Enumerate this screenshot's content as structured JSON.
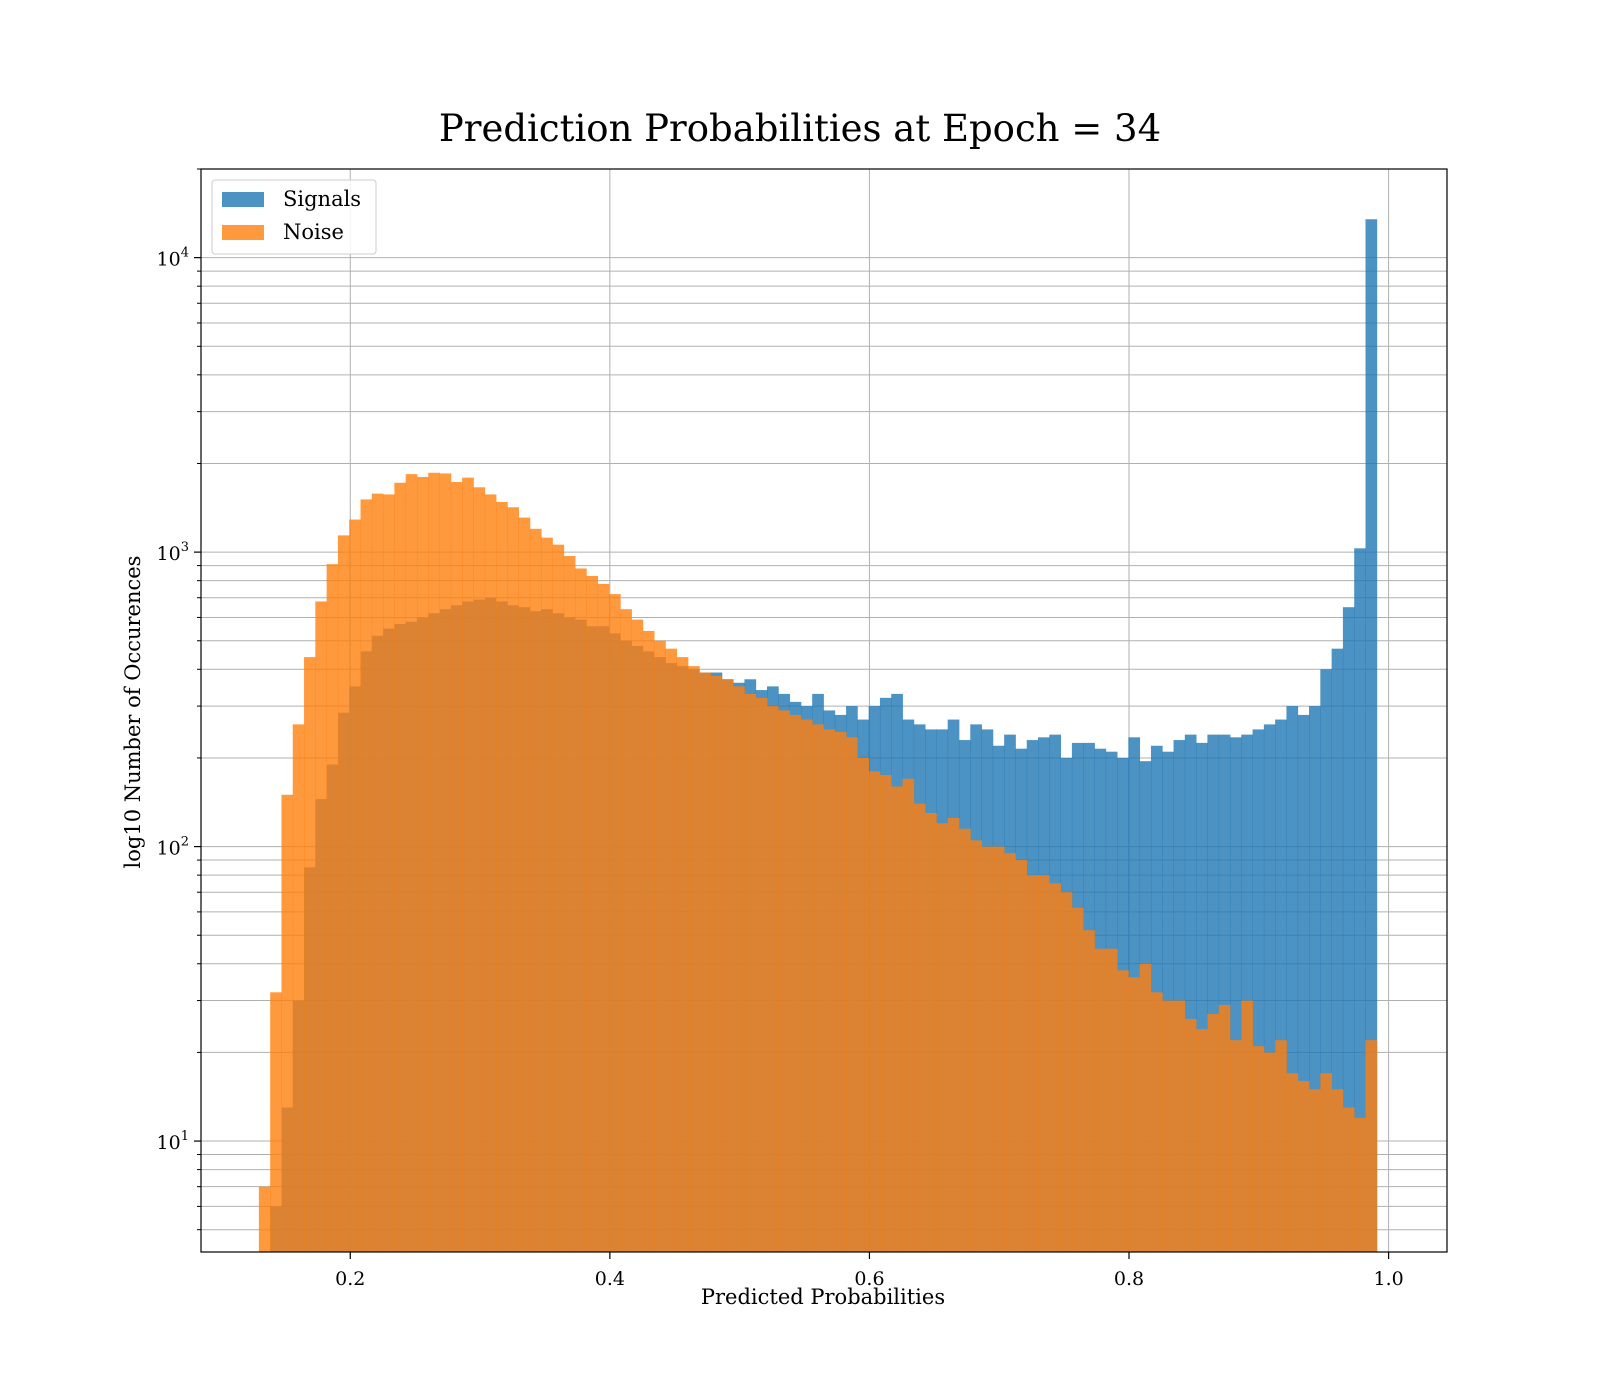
{
  "chart_data": {
    "type": "bar",
    "title": "Prediction Probabilities at Epoch = 34",
    "xlabel": "Predicted Probabilities",
    "ylabel": "log10 Number of Occurences",
    "x_scale": "linear",
    "y_scale": "log",
    "xlim": [
      0.085,
      1.045
    ],
    "ylim": [
      4.2,
      20000
    ],
    "grid": true,
    "legend_position": "top-left",
    "x_ticks": [
      {
        "value": 0.2,
        "label": "0.2"
      },
      {
        "value": 0.4,
        "label": "0.4"
      },
      {
        "value": 0.6,
        "label": "0.6"
      },
      {
        "value": 0.8,
        "label": "0.8"
      },
      {
        "value": 1.0,
        "label": "1.0"
      }
    ],
    "y_ticks": [
      {
        "value": 10,
        "base": "10",
        "exp": "1"
      },
      {
        "value": 100,
        "base": "10",
        "exp": "2"
      },
      {
        "value": 1000,
        "base": "10",
        "exp": "3"
      },
      {
        "value": 10000,
        "base": "10",
        "exp": "4"
      }
    ],
    "bin_start": 0.1296,
    "bin_width": 0.0087,
    "series": [
      {
        "name": "Signals",
        "color": "#1f77b4",
        "opacity": 0.8,
        "values": [
          0,
          6,
          13,
          30,
          85,
          145,
          190,
          285,
          350,
          460,
          520,
          550,
          570,
          580,
          600,
          620,
          640,
          660,
          680,
          690,
          700,
          680,
          660,
          650,
          630,
          640,
          620,
          600,
          590,
          560,
          560,
          530,
          500,
          480,
          460,
          440,
          420,
          410,
          400,
          390,
          390,
          370,
          360,
          370,
          340,
          350,
          330,
          310,
          300,
          330,
          290,
          280,
          300,
          270,
          300,
          320,
          330,
          270,
          260,
          250,
          250,
          270,
          230,
          260,
          250,
          220,
          240,
          215,
          230,
          235,
          240,
          200,
          225,
          225,
          215,
          210,
          200,
          235,
          195,
          220,
          210,
          230,
          240,
          225,
          240,
          240,
          235,
          240,
          250,
          260,
          270,
          300,
          280,
          300,
          400,
          470,
          650,
          1030,
          13500
        ]
      },
      {
        "name": "Noise",
        "color": "#ff7f0e",
        "opacity": 0.8,
        "values": [
          7,
          32,
          150,
          260,
          440,
          680,
          910,
          1140,
          1290,
          1510,
          1580,
          1570,
          1720,
          1840,
          1800,
          1860,
          1850,
          1730,
          1790,
          1660,
          1570,
          1480,
          1420,
          1310,
          1200,
          1120,
          1060,
          970,
          880,
          830,
          780,
          720,
          640,
          590,
          540,
          500,
          470,
          440,
          410,
          390,
          380,
          370,
          350,
          330,
          320,
          300,
          290,
          280,
          270,
          260,
          250,
          245,
          235,
          200,
          180,
          175,
          160,
          170,
          140,
          130,
          120,
          125,
          115,
          105,
          100,
          100,
          95,
          90,
          80,
          80,
          75,
          70,
          62,
          52,
          45,
          45,
          38,
          36,
          40,
          32,
          30,
          30,
          26,
          24,
          27,
          29,
          22,
          30,
          21,
          20,
          22,
          17,
          16,
          15,
          17,
          15,
          13,
          12,
          22
        ]
      }
    ]
  }
}
